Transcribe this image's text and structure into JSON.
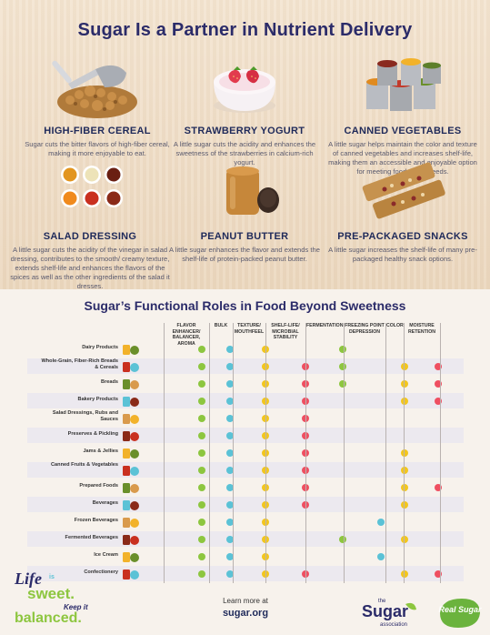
{
  "title": "Sugar Is a Partner in Nutrient Delivery",
  "colors": {
    "navy": "#2b2b69",
    "green": "#8dc63f",
    "blue": "#5bc2d6",
    "yellow": "#f2c61f",
    "red": "#ef4f61",
    "orange": "#f29b25"
  },
  "cards": [
    {
      "title": "HIGH-FIBER CEREAL",
      "text": "Sugar cuts the bitter flavors of high-fiber cereal, making it more enjoyable to eat.",
      "icon": "cereal-scoop-icon"
    },
    {
      "title": "STRAWBERRY YOGURT",
      "text": "A little sugar cuts the acidity and enhances the sweetness of the strawberries in calcium-rich yogurt.",
      "icon": "yogurt-bowl-icon"
    },
    {
      "title": "CANNED VEGETABLES",
      "text": "A little sugar helps maintain the color and texture of canned vegetables and increases shelf-life, making them an accessible and enjoyable option for meeting food group needs.",
      "icon": "canned-vegetables-icon"
    },
    {
      "title": "SALAD DRESSING",
      "text": "A little sugar cuts the acidity of the vinegar in salad dressing, contributes to the smooth/ creamy texture, extends shelf-life and enhances the flavors of the spices as well as the other ingredients of the salad it dresses.",
      "icon": "dressing-cups-icon"
    },
    {
      "title": "PEANUT BUTTER",
      "text": "A little sugar enhances the flavor and extends the shelf-life of protein-packed peanut butter.",
      "icon": "peanut-butter-jar-icon"
    },
    {
      "title": "PRE-PACKAGED SNACKS",
      "text": "A little sugar increases the shelf-life of many pre-packaged healthy snack options.",
      "icon": "granola-bar-icon"
    }
  ],
  "table": {
    "title": "Sugar’s Functional Roles in Food Beyond Sweetness",
    "columns": [
      {
        "label": "FLAVOR ENHANCER/ BALANCER, AROMA",
        "color": "green"
      },
      {
        "label": "BULK",
        "color": "blue"
      },
      {
        "label": "TEXTURE/ MOUTHFEEL",
        "color": "yellow"
      },
      {
        "label": "SHELF-LIFE/ MICROBIAL STABILITY",
        "color": "red"
      },
      {
        "label": "FERMENTATION",
        "color": "green"
      },
      {
        "label": "FREEZING POINT DEPRESSION",
        "color": "blue"
      },
      {
        "label": "COLOR",
        "color": "yellow"
      },
      {
        "label": "MOISTURE RETENTION",
        "color": "red"
      }
    ],
    "rows": [
      {
        "label": "Dairy Products",
        "marks": [
          1,
          1,
          1,
          0,
          1,
          0,
          0,
          0
        ],
        "icon": "milk-carton-icon"
      },
      {
        "label": "Whole-Grain, Fiber-Rich Breads & Cereals",
        "marks": [
          1,
          1,
          1,
          1,
          1,
          0,
          1,
          1
        ],
        "icon": "cereal-bowl-icon"
      },
      {
        "label": "Breads",
        "marks": [
          1,
          1,
          1,
          1,
          1,
          0,
          1,
          1
        ],
        "icon": "bread-icon"
      },
      {
        "label": "Bakery Products",
        "marks": [
          1,
          1,
          1,
          1,
          0,
          0,
          1,
          1
        ],
        "icon": "pastry-icon"
      },
      {
        "label": "Salad Dressings, Rubs and Sauces",
        "marks": [
          1,
          1,
          1,
          1,
          0,
          0,
          0,
          0
        ],
        "icon": "sauce-bottles-icon"
      },
      {
        "label": "Preserves & Pickling",
        "marks": [
          1,
          1,
          1,
          1,
          0,
          0,
          0,
          0
        ],
        "icon": "pickle-icon"
      },
      {
        "label": "Jams & Jellies",
        "marks": [
          1,
          1,
          1,
          1,
          0,
          0,
          1,
          0
        ],
        "icon": "jam-jar-icon"
      },
      {
        "label": "Canned Fruits & Vegetables",
        "marks": [
          1,
          1,
          1,
          1,
          0,
          0,
          1,
          0
        ],
        "icon": "cans-icon"
      },
      {
        "label": "Prepared Foods",
        "marks": [
          1,
          1,
          1,
          1,
          0,
          0,
          1,
          1
        ],
        "icon": "meal-container-icon"
      },
      {
        "label": "Beverages",
        "marks": [
          1,
          1,
          1,
          1,
          0,
          0,
          1,
          0
        ],
        "icon": "drink-cups-icon"
      },
      {
        "label": "Frozen Beverages",
        "marks": [
          1,
          1,
          1,
          0,
          0,
          1,
          0,
          0
        ],
        "icon": "frozen-drink-icon"
      },
      {
        "label": "Fermented Beverages",
        "marks": [
          1,
          1,
          1,
          0,
          1,
          0,
          1,
          0
        ],
        "icon": "bottle-icon"
      },
      {
        "label": "Ice Cream",
        "marks": [
          1,
          1,
          1,
          0,
          0,
          1,
          0,
          0
        ],
        "icon": "ice-cream-icon"
      },
      {
        "label": "Confectionery",
        "marks": [
          1,
          1,
          1,
          1,
          0,
          0,
          1,
          1
        ],
        "icon": "candy-icon"
      }
    ]
  },
  "footer": {
    "slogan_life": "Life",
    "slogan_is": "is",
    "slogan_sweet": "sweet.",
    "slogan_keep": "Keep it",
    "slogan_balanced": "balanced.",
    "learn_more": "Learn more at",
    "url": "sugar.org",
    "assoc_the": "the",
    "assoc_sugar": "Sugar",
    "assoc_association": "association",
    "real_sugar": "Real Sugar"
  }
}
